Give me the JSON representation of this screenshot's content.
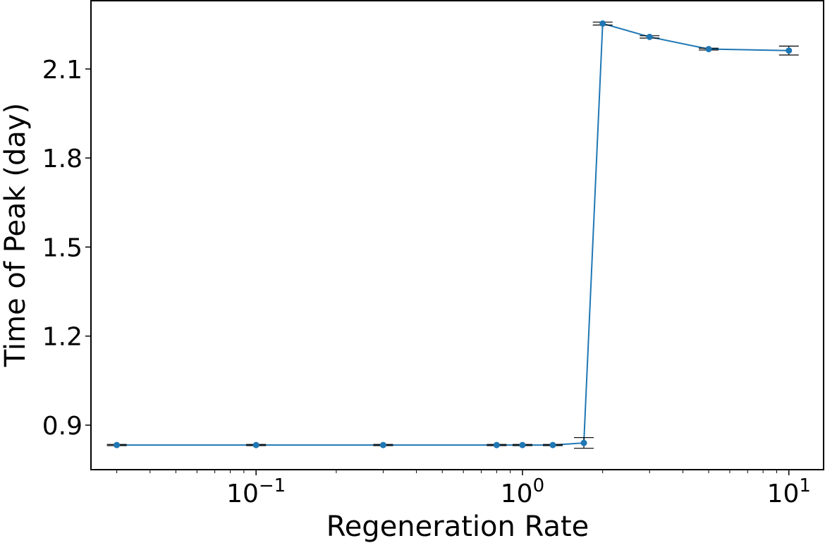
{
  "chart_data": {
    "type": "line",
    "title": "",
    "xlabel": "Regeneration Rate",
    "ylabel": "Time of Peak (day)",
    "x_scale": "log",
    "xlim": [
      0.024,
      13.5
    ],
    "ylim": [
      0.75,
      2.33
    ],
    "grid": false,
    "legend": "none",
    "x_ticks": [
      {
        "value": 0.1,
        "base": "10",
        "exp": "−1"
      },
      {
        "value": 1,
        "base": "10",
        "exp": "0"
      },
      {
        "value": 10,
        "base": "10",
        "exp": "1"
      }
    ],
    "y_ticks": [
      {
        "value": 0.9,
        "label": "0.9"
      },
      {
        "value": 1.2,
        "label": "1.2"
      },
      {
        "value": 1.5,
        "label": "1.5"
      },
      {
        "value": 1.8,
        "label": "1.8"
      },
      {
        "value": 2.1,
        "label": "2.1"
      }
    ],
    "series": [
      {
        "color": "#1f77b4",
        "x": [
          0.03,
          0.1,
          0.3,
          0.8,
          1.0,
          1.3,
          1.7,
          2.0,
          3.0,
          5.0,
          10.0
        ],
        "y": [
          0.833,
          0.833,
          0.833,
          0.833,
          0.833,
          0.833,
          0.84,
          2.253,
          2.208,
          2.167,
          2.162
        ],
        "yerr": [
          0.002,
          0.002,
          0.002,
          0.002,
          0.002,
          0.002,
          0.018,
          0.005,
          0.004,
          0.003,
          0.015
        ]
      }
    ]
  }
}
